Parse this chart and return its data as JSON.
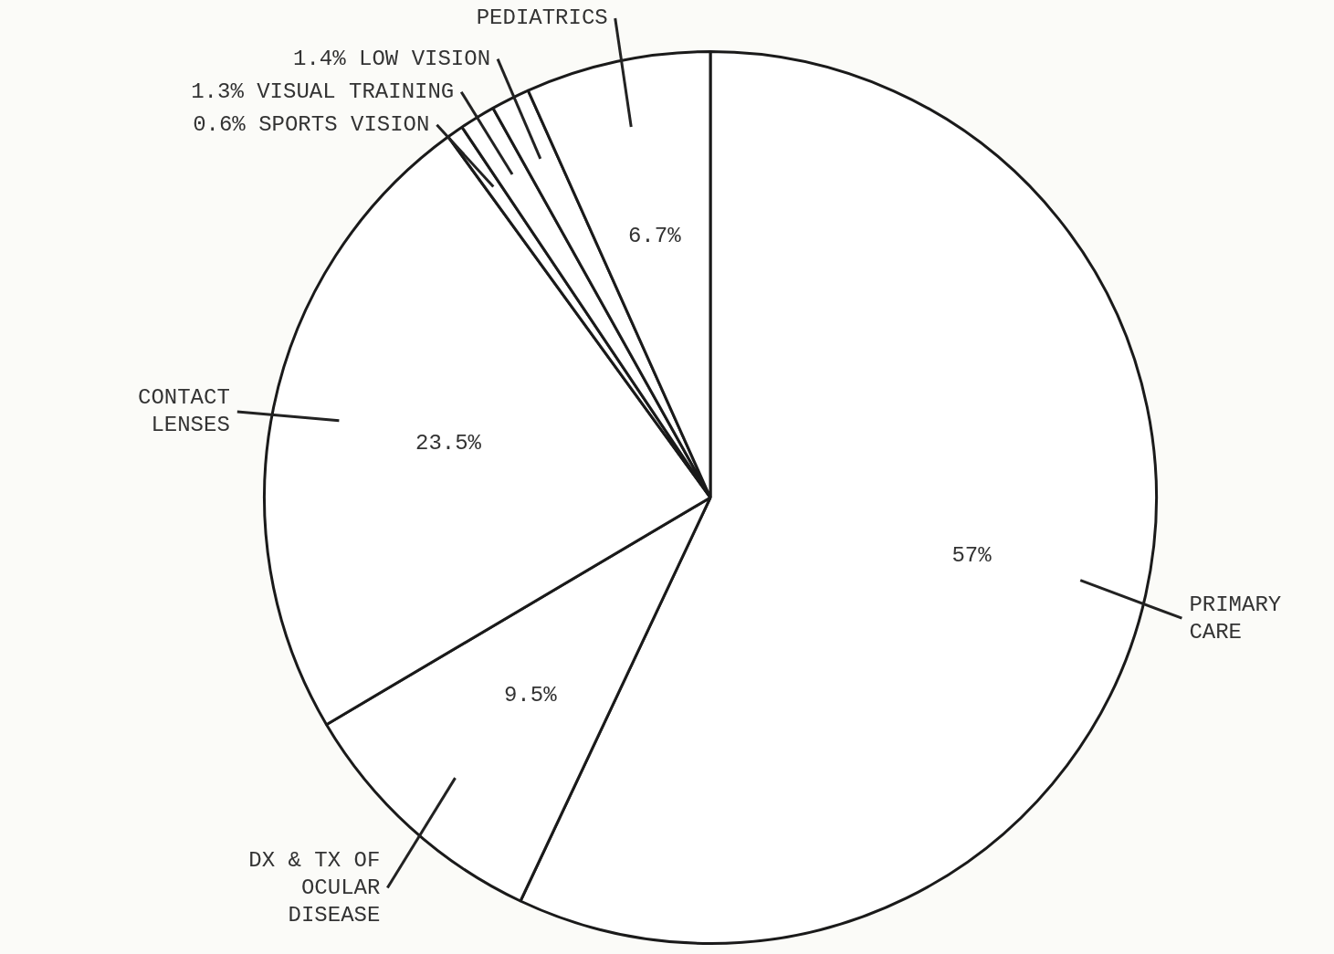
{
  "chart_data": {
    "type": "pie",
    "categories": [
      "PRIMARY CARE",
      "DX & TX OF OCULAR DISEASE",
      "CONTACT LENSES",
      "SPORTS VISION",
      "VISUAL TRAINING",
      "LOW VISION",
      "PEDIATRICS"
    ],
    "values": [
      57,
      9.5,
      23.5,
      0.6,
      1.3,
      1.4,
      6.7
    ],
    "value_labels": [
      "57%",
      "9.5%",
      "23.5%",
      "0.6%",
      "1.3%",
      "1.4%",
      "6.7%"
    ],
    "colors": [
      "#ffffff",
      "#ffffff",
      "#ffffff",
      "#ffffff",
      "#ffffff",
      "#ffffff",
      "#ffffff"
    ]
  }
}
